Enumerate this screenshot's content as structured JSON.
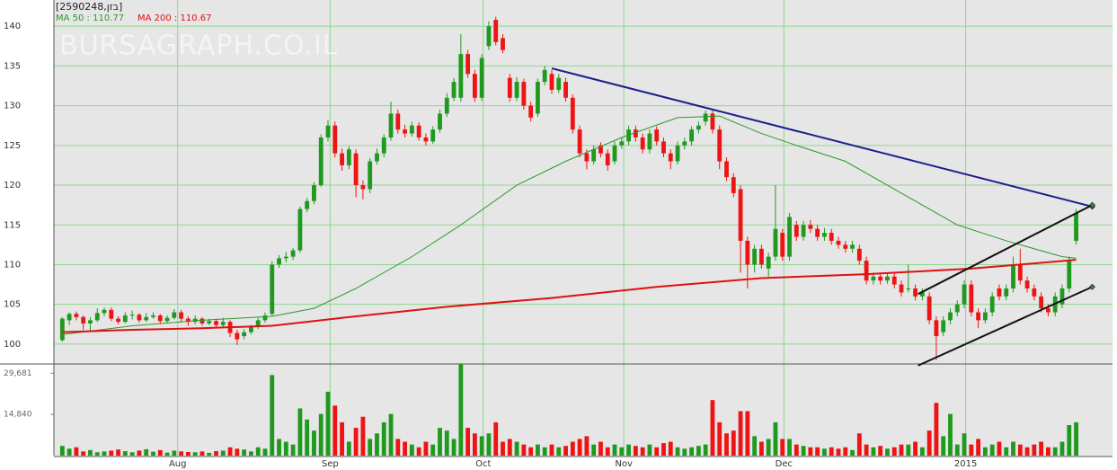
{
  "chart_data": {
    "type": "candlestick",
    "title": "[2590248,בזן]",
    "watermark": "BURSAGRAPH.CO.IL",
    "up_color": "#1f9a1f",
    "down_color": "#ee1414",
    "grid": true,
    "grid_color": "#8fd68f",
    "background": "#e6e6e6",
    "xlim": [
      -1.2,
      150.2
    ],
    "xticks": [
      {
        "value": 16.5,
        "label": "Aug"
      },
      {
        "value": 38.3,
        "label": "Sep"
      },
      {
        "value": 60.2,
        "label": "Oct"
      },
      {
        "value": 80.3,
        "label": "Nov"
      },
      {
        "value": 103.2,
        "label": "Dec"
      },
      {
        "value": 129.2,
        "label": "2015"
      }
    ],
    "ylim": [
      97.5,
      143.3
    ],
    "yticks": [
      100,
      105,
      110,
      115,
      120,
      125,
      130,
      135,
      140
    ],
    "open": [
      100.5,
      103.0,
      103.8,
      103.4,
      102.6,
      103.0,
      103.9,
      104.3,
      103.2,
      102.8,
      103.6,
      103.7,
      103.0,
      103.4,
      103.6,
      102.9,
      103.3,
      104.0,
      103.2,
      102.8,
      103.2,
      102.6,
      102.9,
      102.4,
      102.8,
      101.4,
      101.0,
      101.5,
      102.2,
      103.0,
      103.8,
      110.0,
      110.8,
      111.0,
      111.8,
      117.0,
      118.0,
      120.0,
      126.0,
      127.5,
      124.0,
      122.5,
      124.0,
      120.0,
      119.5,
      123.0,
      124.0,
      126.0,
      129.0,
      127.0,
      126.5,
      127.5,
      126.0,
      125.5,
      127.0,
      129.0,
      131.0,
      131.0,
      136.5,
      134.0,
      131.0,
      137.5,
      140.8,
      138.5,
      133.5,
      131.0,
      133.0,
      130.0,
      129.0,
      133.0,
      134.0,
      132.0,
      133.0,
      131.0,
      127.0,
      124.0,
      123.0,
      125.0,
      124.0,
      123.0,
      125.0,
      125.5,
      127.0,
      126.0,
      124.5,
      127.0,
      125.5,
      124.0,
      123.0,
      125.0,
      125.5,
      127.0,
      128.0,
      129.0,
      127.0,
      123.0,
      121.0,
      119.5,
      113.0,
      110.0,
      112.0,
      109.5,
      111.0,
      114.0,
      111.0,
      115.0,
      113.5,
      115.0,
      114.5,
      113.5,
      114.0,
      113.0,
      112.5,
      112.0,
      112.0,
      110.5,
      108.0,
      108.5,
      108.0,
      108.5,
      107.5,
      107.0,
      107.0,
      106.0,
      106.0,
      103.0,
      101.5,
      103.0,
      104.0,
      105.0,
      107.5,
      104.0,
      103.0,
      104.0,
      107.0,
      106.0,
      107.0,
      110.0,
      108.0,
      107.0,
      106.0,
      104.5,
      104.0,
      105.0,
      107.0,
      113.0
    ],
    "high": [
      103.4,
      104.0,
      104.1,
      103.6,
      103.4,
      104.5,
      104.6,
      104.6,
      103.5,
      104.0,
      104.2,
      103.9,
      103.9,
      104.0,
      103.8,
      103.6,
      104.4,
      104.3,
      103.5,
      103.6,
      103.4,
      103.2,
      103.2,
      103.3,
      103.0,
      101.8,
      101.9,
      102.4,
      103.3,
      104.0,
      110.4,
      111.2,
      111.6,
      112.1,
      117.3,
      118.4,
      120.4,
      126.4,
      128.2,
      128.0,
      124.6,
      124.9,
      124.5,
      120.6,
      123.4,
      124.6,
      126.4,
      130.5,
      129.5,
      127.6,
      128.0,
      127.9,
      126.5,
      127.4,
      129.5,
      131.6,
      133.5,
      139.0,
      137.0,
      134.5,
      136.5,
      140.6,
      141.2,
      139.0,
      134.0,
      133.6,
      133.4,
      130.5,
      133.4,
      135.0,
      134.5,
      134.0,
      133.5,
      131.4,
      127.5,
      124.5,
      125.0,
      125.4,
      124.5,
      125.5,
      126.0,
      127.5,
      127.5,
      126.5,
      127.0,
      127.4,
      126.0,
      124.5,
      125.5,
      126.0,
      127.4,
      128.0,
      129.4,
      129.5,
      127.5,
      123.5,
      121.5,
      120.0,
      113.5,
      112.5,
      112.5,
      111.5,
      120.0,
      114.5,
      116.5,
      115.5,
      115.5,
      115.6,
      115.0,
      114.6,
      114.5,
      113.5,
      113.0,
      113.0,
      112.5,
      111.0,
      109.0,
      109.0,
      109.0,
      109.0,
      108.0,
      110.0,
      107.5,
      107.0,
      106.5,
      103.5,
      103.5,
      104.5,
      105.5,
      108.0,
      108.0,
      104.5,
      104.5,
      106.5,
      107.5,
      107.5,
      111.0,
      112.0,
      108.5,
      107.5,
      106.5,
      105.0,
      106.5,
      107.5,
      111.0,
      117.0
    ],
    "low": [
      100.3,
      102.4,
      103.0,
      101.8,
      101.5,
      102.8,
      103.5,
      102.9,
      102.5,
      102.6,
      103.1,
      102.7,
      102.8,
      103.2,
      102.5,
      102.6,
      103.1,
      102.8,
      102.3,
      102.5,
      102.3,
      102.4,
      102.0,
      102.1,
      100.9,
      99.9,
      100.6,
      101.2,
      101.9,
      102.7,
      103.6,
      109.6,
      110.3,
      110.6,
      111.5,
      116.6,
      117.6,
      119.8,
      125.5,
      123.5,
      121.8,
      122.0,
      118.5,
      118.2,
      119.0,
      122.6,
      123.5,
      125.6,
      126.5,
      126.0,
      126.1,
      125.6,
      125.0,
      125.2,
      126.6,
      128.6,
      130.6,
      130.5,
      133.5,
      130.5,
      130.6,
      137.0,
      137.6,
      136.6,
      130.5,
      130.6,
      129.5,
      128.0,
      128.6,
      132.6,
      131.5,
      131.6,
      130.5,
      126.5,
      123.5,
      122.0,
      122.6,
      123.5,
      121.8,
      122.6,
      124.6,
      125.0,
      125.5,
      124.0,
      124.0,
      125.0,
      123.5,
      122.0,
      122.6,
      124.5,
      125.0,
      126.5,
      127.5,
      126.5,
      122.0,
      120.5,
      118.5,
      109.0,
      107.0,
      109.0,
      109.5,
      108.5,
      110.5,
      110.5,
      110.5,
      113.0,
      113.0,
      114.0,
      113.0,
      113.0,
      112.5,
      112.0,
      111.5,
      111.5,
      110.0,
      107.5,
      107.5,
      107.5,
      107.6,
      107.0,
      106.0,
      106.5,
      105.5,
      105.5,
      102.5,
      98.0,
      101.0,
      102.5,
      103.5,
      104.5,
      103.5,
      102.0,
      102.6,
      103.5,
      105.5,
      105.5,
      106.5,
      107.5,
      106.5,
      105.5,
      104.0,
      103.5,
      103.5,
      104.5,
      106.5,
      112.5
    ],
    "close": [
      103.2,
      103.8,
      103.4,
      102.6,
      103.0,
      103.9,
      104.3,
      103.2,
      102.8,
      103.6,
      103.7,
      103.0,
      103.4,
      103.6,
      102.9,
      103.3,
      104.0,
      103.2,
      102.8,
      103.2,
      102.6,
      102.9,
      102.4,
      102.8,
      101.4,
      100.6,
      101.5,
      102.2,
      103.0,
      103.6,
      110.0,
      110.8,
      111.0,
      111.8,
      117.0,
      118.0,
      120.0,
      126.0,
      127.5,
      124.0,
      122.5,
      124.5,
      120.0,
      119.5,
      123.0,
      124.0,
      126.0,
      129.0,
      127.0,
      126.5,
      127.5,
      126.0,
      125.5,
      127.0,
      129.0,
      131.0,
      133.0,
      136.5,
      134.0,
      131.0,
      136.0,
      140.0,
      138.0,
      137.0,
      131.0,
      133.0,
      130.0,
      128.5,
      133.0,
      134.5,
      132.0,
      133.5,
      131.0,
      127.0,
      124.0,
      123.0,
      124.5,
      124.0,
      122.5,
      125.0,
      125.5,
      127.0,
      126.0,
      124.5,
      126.5,
      125.5,
      124.0,
      123.0,
      125.0,
      125.5,
      127.0,
      127.5,
      129.0,
      127.0,
      123.0,
      121.0,
      119.0,
      113.0,
      110.0,
      112.0,
      110.0,
      111.0,
      114.5,
      111.0,
      116.0,
      113.5,
      115.0,
      114.5,
      113.5,
      114.0,
      113.0,
      112.5,
      112.0,
      112.5,
      110.5,
      108.0,
      108.5,
      108.0,
      108.5,
      107.5,
      106.5,
      107.0,
      106.0,
      106.5,
      103.0,
      101.0,
      103.0,
      104.0,
      105.0,
      107.5,
      104.0,
      103.0,
      104.0,
      106.0,
      106.0,
      107.0,
      110.0,
      108.0,
      107.0,
      106.0,
      104.5,
      104.0,
      106.0,
      107.0,
      110.5,
      116.5
    ],
    "volume": {
      "ylim": [
        0,
        33000
      ],
      "yticks": [
        {
          "value": 29681,
          "label": "29,681"
        },
        {
          "value": 14840,
          "label": "14,840"
        }
      ],
      "values": [
        3500,
        2500,
        3000,
        1500,
        2000,
        1200,
        1500,
        1800,
        2200,
        1600,
        1200,
        1800,
        2300,
        1400,
        2000,
        1100,
        1800,
        1500,
        1300,
        1200,
        1500,
        1000,
        1600,
        1800,
        3000,
        2500,
        2200,
        1500,
        3000,
        2500,
        29000,
        6000,
        5000,
        4000,
        17000,
        13000,
        9000,
        15000,
        23000,
        18000,
        12000,
        5000,
        10000,
        14000,
        6000,
        8000,
        12000,
        15000,
        6000,
        5000,
        4000,
        3000,
        5000,
        4000,
        10000,
        9000,
        6000,
        33000,
        10000,
        8000,
        7000,
        8000,
        12000,
        5000,
        6000,
        5000,
        4000,
        3000,
        4000,
        3000,
        4000,
        3000,
        3500,
        5000,
        6000,
        7000,
        4000,
        5000,
        3000,
        4000,
        3000,
        4000,
        3500,
        3000,
        4000,
        3000,
        4500,
        5000,
        3000,
        2500,
        3000,
        3500,
        4000,
        20000,
        12000,
        8000,
        9000,
        16000,
        16000,
        7000,
        5000,
        6000,
        12000,
        6000,
        6000,
        4000,
        3500,
        3000,
        3000,
        2500,
        3000,
        2500,
        3000,
        2000,
        8000,
        4000,
        3000,
        3500,
        2500,
        3000,
        4000,
        4000,
        5000,
        3000,
        9000,
        19000,
        7000,
        15000,
        4000,
        8000,
        4000,
        6000,
        3000,
        4000,
        5000,
        3000,
        5000,
        4000,
        3000,
        4000,
        5000,
        3000,
        3000,
        5000,
        11000,
        12000
      ]
    },
    "moving_averages": [
      {
        "name": "MA 50 : 110.77",
        "color": "#2a9a2a",
        "width": 1,
        "x": [
          0,
          10,
          20,
          30,
          36,
          42,
          50,
          57,
          65,
          72,
          80,
          88,
          94,
          100,
          105,
          112,
          120,
          128,
          135,
          143,
          145
        ],
        "values": [
          101.2,
          102.3,
          103.0,
          103.5,
          104.5,
          107.0,
          111.0,
          115.0,
          120.0,
          123.0,
          126.0,
          128.5,
          128.7,
          126.5,
          125.0,
          123.0,
          119.0,
          115.0,
          113.0,
          111.0,
          110.8
        ]
      },
      {
        "name": "MA 200 : 110.67",
        "color": "#e01010",
        "width": 2,
        "x": [
          0,
          10,
          20,
          30,
          40,
          55,
          70,
          85,
          100,
          115,
          130,
          145
        ],
        "values": [
          101.5,
          101.8,
          102.0,
          102.3,
          103.3,
          104.7,
          105.8,
          107.2,
          108.3,
          108.8,
          109.5,
          110.6
        ]
      }
    ],
    "trendlines": [
      {
        "color": "#1c1c8c",
        "x": [
          70,
          147.3
        ],
        "y": [
          134.7,
          117.3
        ]
      },
      {
        "color": "#111111",
        "x": [
          122.4,
          147.3
        ],
        "y": [
          106.3,
          117.5
        ]
      },
      {
        "color": "#111111",
        "x": [
          122.4,
          147.3
        ],
        "y": [
          97.3,
          107.2
        ]
      }
    ]
  }
}
